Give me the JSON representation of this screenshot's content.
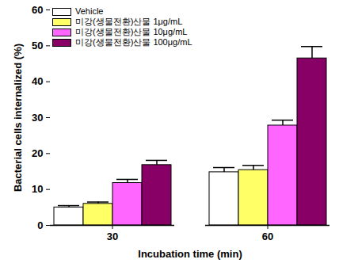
{
  "chart_data": {
    "type": "bar",
    "xlabel": "Incubation time (min)",
    "ylabel": "Bacterial cells internalized (%)",
    "categories": [
      "30",
      "60"
    ],
    "ylim": [
      0,
      60
    ],
    "yticks": [
      0,
      10,
      20,
      30,
      40,
      50,
      60
    ],
    "legend": "top-left",
    "series": [
      {
        "name": "Vehicle",
        "color": "#ffffff",
        "values": [
          5.0,
          14.8
        ],
        "errors": [
          0.5,
          1.3
        ]
      },
      {
        "name": "미강(생물전환)산물 1μg/mL",
        "color": "#ffff66",
        "values": [
          6.0,
          15.4
        ],
        "errors": [
          0.5,
          1.3
        ]
      },
      {
        "name": "미강(생물전환)산물 10μg/mL",
        "color": "#ff66ff",
        "values": [
          11.8,
          27.8
        ],
        "errors": [
          1.0,
          1.5
        ]
      },
      {
        "name": "미강(생물전환)산물 100μg/mL",
        "color": "#880066",
        "values": [
          16.8,
          46.5
        ],
        "errors": [
          1.3,
          3.3
        ]
      }
    ]
  }
}
